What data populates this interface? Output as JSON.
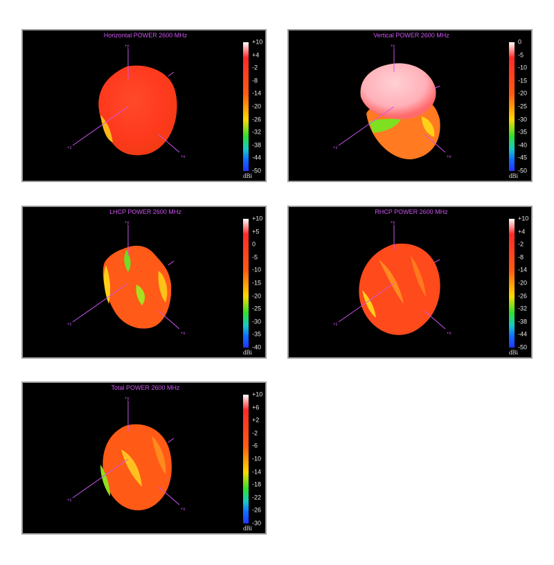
{
  "colorbar_unit": "dBi",
  "axes": {
    "y": "+y",
    "x": "+x",
    "z": "+z"
  },
  "colors": {
    "axis": "#cc55ee",
    "panel_bg": "#000000",
    "frame": "#9a9a9a"
  },
  "panels": [
    {
      "title": "Horizontal POWER 2600  MHz",
      "ticks": [
        "+10",
        "+4",
        "-2",
        "-8",
        "-14",
        "-20",
        "-26",
        "-32",
        "-38",
        "-44",
        "-50"
      ]
    },
    {
      "title": "Vertical POWER 2600  MHz",
      "ticks": [
        "0",
        "-5",
        "-10",
        "-15",
        "-20",
        "-25",
        "-30",
        "-35",
        "-40",
        "-45",
        "-50"
      ]
    },
    {
      "title": "LHCP POWER 2600  MHz",
      "ticks": [
        "+10",
        "+5",
        "0",
        "-5",
        "-10",
        "-15",
        "-20",
        "-25",
        "-30",
        "-35",
        "-40"
      ]
    },
    {
      "title": "RHCP POWER 2600  MHz",
      "ticks": [
        "+10",
        "+4",
        "-2",
        "-8",
        "-14",
        "-20",
        "-26",
        "-32",
        "-38",
        "-44",
        "-50"
      ]
    },
    {
      "title": "Total POWER 2600  MHz",
      "ticks": [
        "+10",
        "+6",
        "+2",
        "-2",
        "-6",
        "-10",
        "-14",
        "-18",
        "-22",
        "-26",
        "-30"
      ]
    }
  ]
}
